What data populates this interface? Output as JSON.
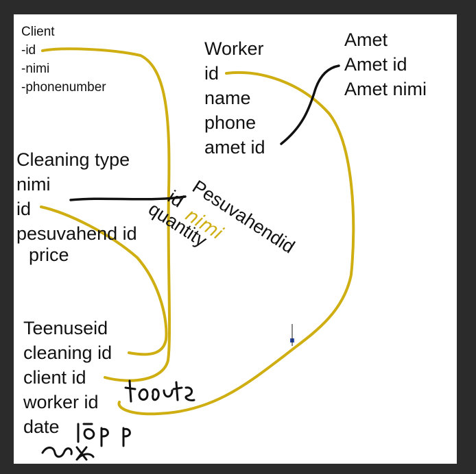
{
  "colors": {
    "connector_yellow": "#cfae12",
    "connector_black": "#111111",
    "background": "#2b2b2b",
    "canvas": "#ffffff"
  },
  "client": {
    "title": "Client",
    "fields": [
      "-id",
      "-nimi",
      "-phonenumber"
    ]
  },
  "worker": {
    "title": "Worker",
    "fields": [
      "id",
      "name",
      "phone",
      "amet id"
    ]
  },
  "amet": {
    "title": "Amet",
    "fields": [
      "Amet id",
      "Amet nimi"
    ]
  },
  "cleaning_type": {
    "title": "Cleaning type",
    "fields": [
      "nimi",
      "id",
      "pesuvahend id",
      "price"
    ]
  },
  "pesuvahendid": {
    "title": "Pesuvahendid",
    "fields": [
      "id",
      "nimi",
      "quantity"
    ]
  },
  "teenuseid": {
    "title": "Teenuseid",
    "fields": [
      "cleaning id",
      "client id",
      "worker id",
      "date"
    ]
  }
}
